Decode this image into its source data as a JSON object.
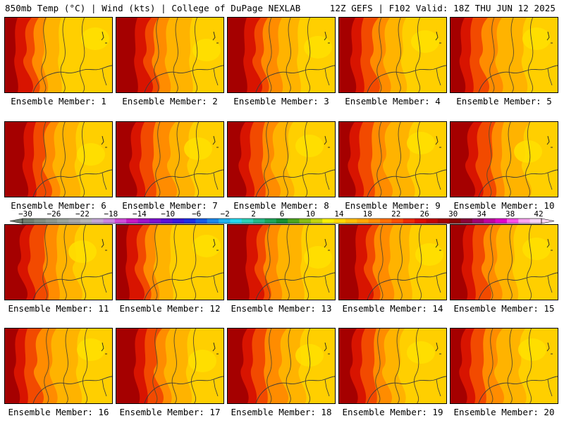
{
  "header": {
    "title_left": "850mb Temp (°C) | Wind (kts) | College of DuPage NEXLAB",
    "title_right": "12Z GEFS | F102 Valid: 18Z THU JUN 12 2025"
  },
  "members": [
    "Ensemble Member: 1",
    "Ensemble Member: 2",
    "Ensemble Member: 3",
    "Ensemble Member: 4",
    "Ensemble Member: 5",
    "Ensemble Member: 6",
    "Ensemble Member: 7",
    "Ensemble Member: 8",
    "Ensemble Member: 9",
    "Ensemble Member: 10",
    "Ensemble Member: 11",
    "Ensemble Member: 12",
    "Ensemble Member: 13",
    "Ensemble Member: 14",
    "Ensemble Member: 15",
    "Ensemble Member: 16",
    "Ensemble Member: 17",
    "Ensemble Member: 18",
    "Ensemble Member: 19",
    "Ensemble Member: 20"
  ],
  "colorbar": {
    "tick_labels": [
      "−30",
      "−26",
      "−22",
      "−18",
      "−14",
      "−10",
      "−6",
      "−2",
      "2",
      "6",
      "10",
      "14",
      "18",
      "22",
      "26",
      "30",
      "34",
      "38",
      "42"
    ],
    "colors": [
      "#6f7d6f",
      "#7f8c7f",
      "#8c968c",
      "#9aa39a",
      "#a7a7a7",
      "#b5b5b5",
      "#c3a6d6",
      "#c784e0",
      "#cf49d8",
      "#c418c4",
      "#9c13c8",
      "#7d10d0",
      "#5a0fd6",
      "#3818dc",
      "#1c2ee4",
      "#155ae6",
      "#1a86ea",
      "#1eb2ee",
      "#25d6ee",
      "#2bd0b6",
      "#22b888",
      "#1ca45a",
      "#159032",
      "#4aa41e",
      "#88bc14",
      "#c0d40c",
      "#f6ee00",
      "#ffd600",
      "#ffbd00",
      "#ffa600",
      "#ff8c00",
      "#ff6e00",
      "#f84e00",
      "#ec2800",
      "#dc0a00",
      "#c40000",
      "#a60000",
      "#8a0000",
      "#8a0038",
      "#a00070",
      "#c000a0",
      "#e000c8",
      "#f850e8",
      "#f8a4f0",
      "#f8d4f6"
    ]
  },
  "map_fill": {
    "east": "#ffcf00",
    "mid": "#ffb300",
    "west": "#ff8c00",
    "hot": "#f24a00",
    "hotter": "#d81400",
    "hottest": "#a50000",
    "contour": "#5a4a2a"
  }
}
